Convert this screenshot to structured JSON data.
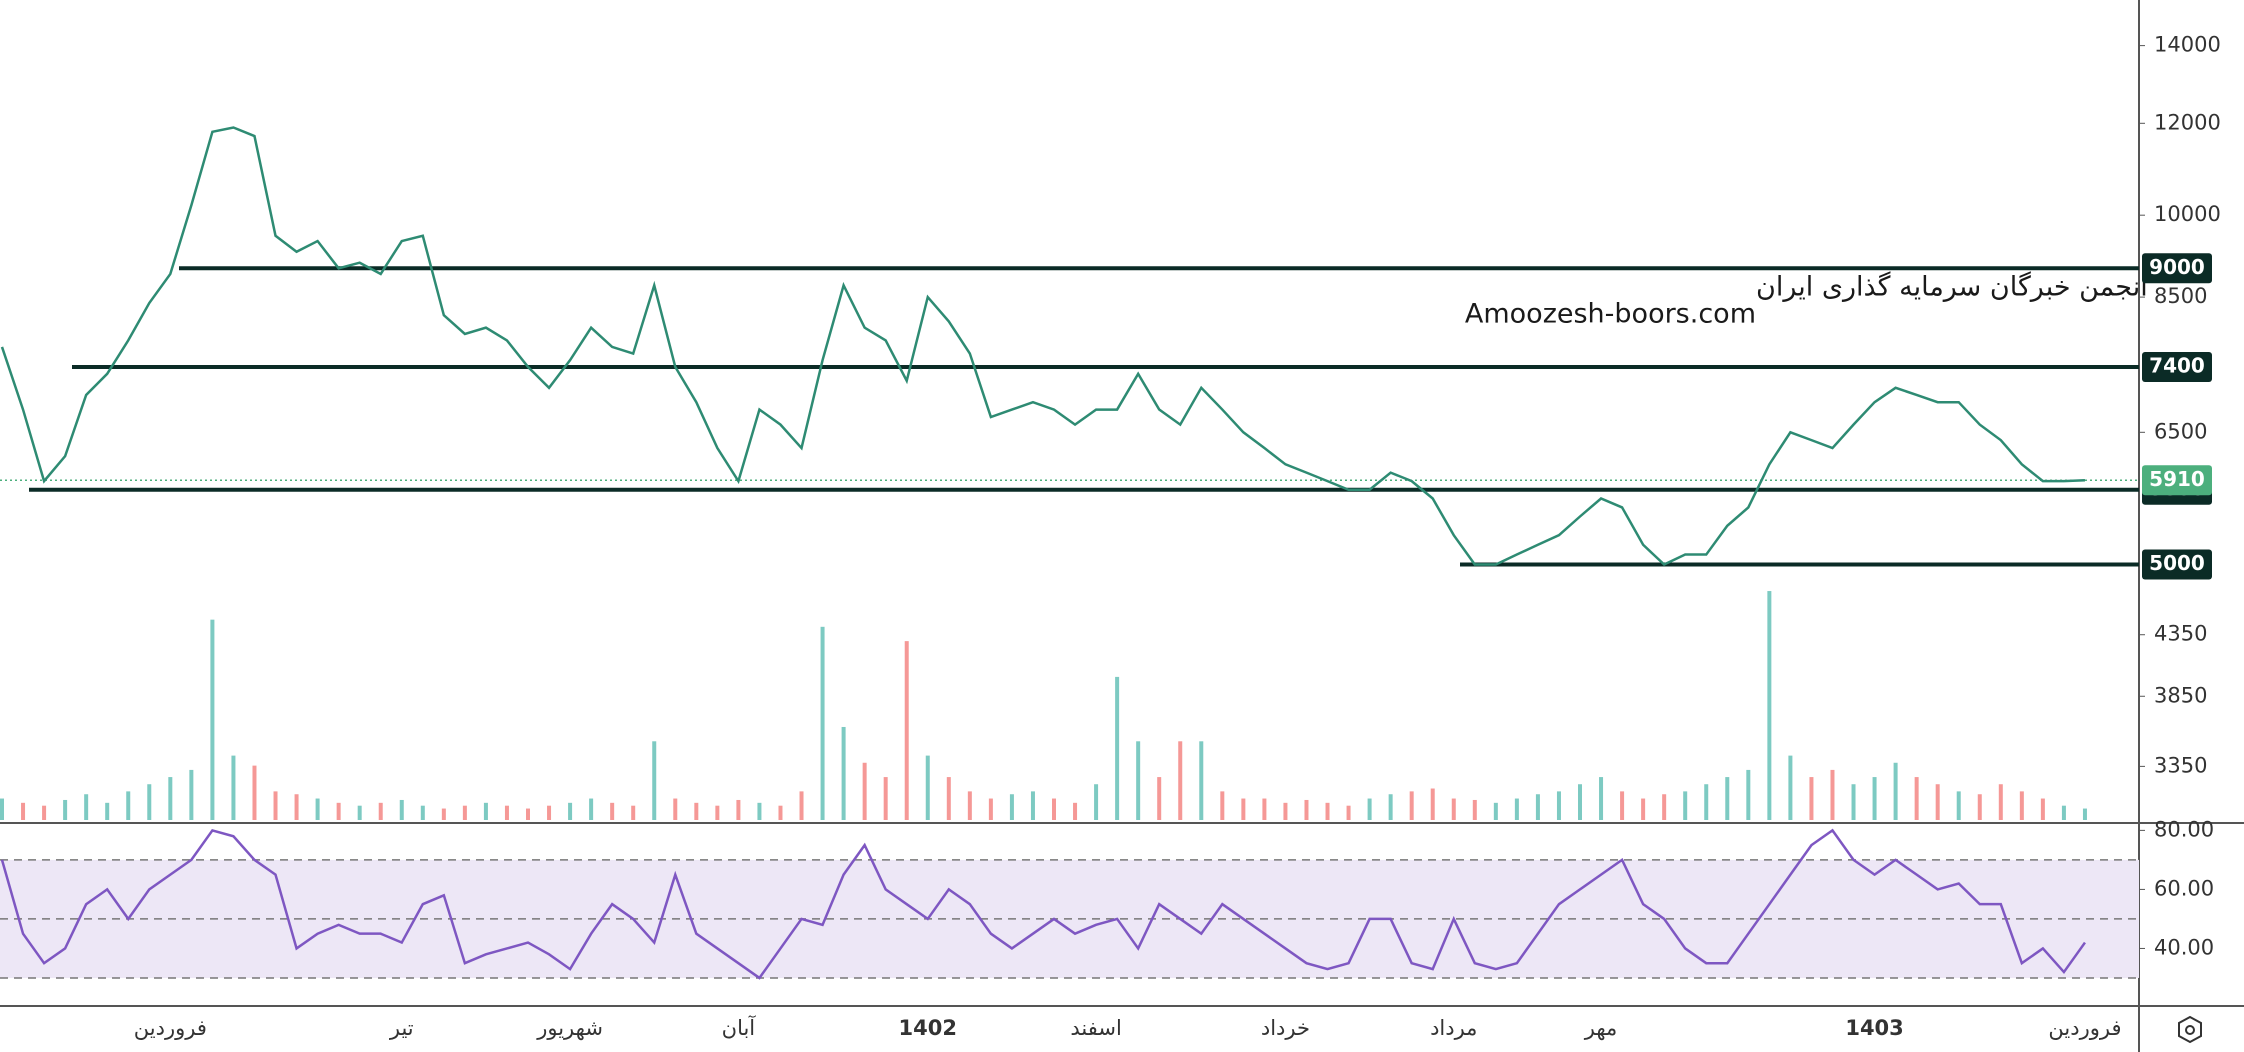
{
  "chart_data": [
    {
      "type": "line",
      "color": "#2e8b73",
      "log_scale": true,
      "ylim": [
        2994,
        15326
      ],
      "yticks": [
        14000,
        12000,
        10000,
        8500,
        6500,
        4350,
        3850,
        3350
      ],
      "levels": [
        9000,
        7400,
        5800,
        5000
      ],
      "last_price": 5910,
      "watermark": [
        "انجمن خبرگان سرمایه گذاری ایران",
        "Amoozesh-boors.com"
      ],
      "categories": [
        null,
        null,
        null,
        null,
        null,
        null,
        null,
        null,
        "فروردین",
        null,
        null,
        null,
        null,
        null,
        null,
        null,
        null,
        null,
        null,
        "تیر",
        null,
        null,
        null,
        null,
        null,
        null,
        null,
        "شهریور",
        null,
        null,
        null,
        null,
        null,
        null,
        null,
        "آبان",
        null,
        null,
        null,
        null,
        null,
        null,
        null,
        null,
        "1402",
        null,
        null,
        null,
        null,
        null,
        null,
        null,
        "اسفند",
        null,
        null,
        null,
        null,
        null,
        null,
        null,
        null,
        "خرداد",
        null,
        null,
        null,
        null,
        null,
        null,
        null,
        "مرداد",
        null,
        null,
        null,
        null,
        null,
        null,
        "مهر",
        null,
        null,
        null,
        null,
        null,
        null,
        null,
        null,
        null,
        null,
        null,
        null,
        "1403",
        null,
        null,
        null,
        null,
        null,
        null,
        null,
        null,
        null,
        "فروردین"
      ],
      "values": [
        7700,
        6800,
        5900,
        6200,
        7000,
        7300,
        7800,
        8400,
        8900,
        10200,
        11800,
        11900,
        11700,
        9600,
        9300,
        9500,
        9000,
        9100,
        8900,
        9500,
        9600,
        8200,
        7900,
        8000,
        7800,
        7400,
        7100,
        7500,
        8000,
        7700,
        7600,
        8700,
        7400,
        6900,
        6300,
        5900,
        6800,
        6600,
        6300,
        7500,
        8700,
        8000,
        7800,
        7200,
        8500,
        8100,
        7600,
        6700,
        6800,
        6900,
        6800,
        6600,
        6800,
        6800,
        7300,
        6800,
        6600,
        7100,
        6800,
        6500,
        6300,
        6100,
        6000,
        5900,
        5800,
        5800,
        6000,
        5900,
        5700,
        5300,
        5000,
        5000,
        5100,
        5200,
        5300,
        5500,
        5700,
        5600,
        5200,
        5000,
        5100,
        5100,
        5400,
        5600,
        6100,
        6500,
        6400,
        6300,
        6600,
        6900,
        7100,
        7000,
        6900,
        6900,
        6600,
        6400,
        6100,
        5900,
        5900,
        5910
      ]
    },
    {
      "type": "bar",
      "colors": [
        "#26a69a",
        "#ef5350"
      ],
      "values": [
        15,
        12,
        10,
        14,
        18,
        12,
        20,
        25,
        30,
        35,
        140,
        45,
        38,
        20,
        18,
        15,
        12,
        10,
        12,
        14,
        10,
        8,
        10,
        12,
        10,
        8,
        10,
        12,
        15,
        12,
        10,
        55,
        15,
        12,
        10,
        14,
        12,
        10,
        20,
        135,
        65,
        40,
        30,
        125,
        45,
        30,
        20,
        15,
        18,
        20,
        15,
        12,
        25,
        100,
        55,
        30,
        55,
        55,
        20,
        15,
        15,
        12,
        14,
        12,
        10,
        15,
        18,
        20,
        22,
        15,
        14,
        12,
        15,
        18,
        20,
        25,
        30,
        20,
        15,
        18,
        20,
        25,
        30,
        35,
        160,
        45,
        30,
        35,
        25,
        30,
        40,
        30,
        25,
        20,
        18,
        25,
        20,
        15,
        10,
        8
      ]
    },
    {
      "type": "line",
      "color": "#7e57c2",
      "ylim": [
        20.5,
        82.5
      ],
      "yticks": [
        {
          "value": 80,
          "label": "80.00"
        },
        {
          "value": 60,
          "label": "60.00"
        },
        {
          "value": 40,
          "label": "40.00"
        }
      ],
      "levels": [
        70,
        50,
        30
      ],
      "values": [
        70,
        45,
        35,
        40,
        55,
        60,
        50,
        60,
        65,
        70,
        80,
        78,
        70,
        65,
        40,
        45,
        48,
        45,
        45,
        42,
        55,
        58,
        35,
        38,
        40,
        42,
        38,
        33,
        45,
        55,
        50,
        42,
        65,
        45,
        40,
        35,
        30,
        40,
        50,
        48,
        65,
        75,
        60,
        55,
        50,
        60,
        55,
        45,
        40,
        45,
        50,
        45,
        48,
        50,
        40,
        55,
        50,
        45,
        55,
        50,
        45,
        40,
        35,
        33,
        35,
        50,
        50,
        35,
        33,
        50,
        35,
        33,
        35,
        45,
        55,
        60,
        65,
        70,
        55,
        50,
        40,
        35,
        35,
        45,
        55,
        65,
        75,
        80,
        70,
        65,
        70,
        65,
        60,
        62,
        55,
        55,
        35,
        40,
        32,
        42
      ]
    }
  ]
}
